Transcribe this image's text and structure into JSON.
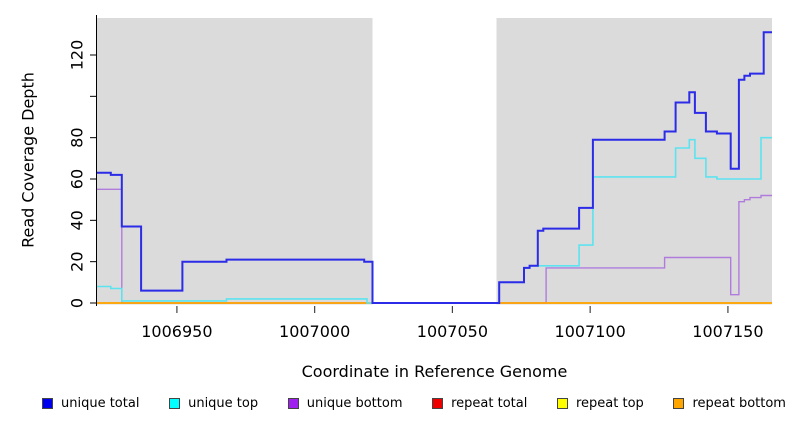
{
  "chart_data": {
    "type": "line",
    "style": "step-after",
    "title": "",
    "xlabel": "Coordinate in Reference Genome",
    "ylabel": "Read Coverage Depth",
    "xlim": [
      1006921,
      1007166
    ],
    "ylim": [
      0,
      138
    ],
    "grid": false,
    "plot_bg_color": "#DBDBDB",
    "axis_color": "#000000",
    "gap_region": {
      "x0": 1007021,
      "x1": 1007066,
      "color": "#FFFFFF"
    },
    "x_ticks": [
      {
        "value": 1006950,
        "label": "1006950"
      },
      {
        "value": 1007000,
        "label": "1007000"
      },
      {
        "value": 1007050,
        "label": "1007050"
      },
      {
        "value": 1007100,
        "label": "1007100"
      },
      {
        "value": 1007150,
        "label": "1007150"
      }
    ],
    "y_ticks": [
      {
        "value": 0,
        "label": "0"
      },
      {
        "value": 20,
        "label": "20"
      },
      {
        "value": 40,
        "label": "40"
      },
      {
        "value": 60,
        "label": "60"
      },
      {
        "value": 80,
        "label": "80"
      },
      {
        "value": 100,
        "label": ""
      },
      {
        "value": 120,
        "label": "120"
      }
    ],
    "series": [
      {
        "id": "repeat-total",
        "label": "repeat total",
        "color": "#E02020",
        "width": 1.2,
        "points": [
          [
            1006921,
            0
          ],
          [
            1007166,
            0
          ]
        ]
      },
      {
        "id": "repeat-top",
        "label": "repeat top",
        "color": "#FFFF00",
        "width": 1.2,
        "points": [
          [
            1006921,
            0
          ],
          [
            1007166,
            0
          ]
        ]
      },
      {
        "id": "unique-bottom",
        "label": "unique bottom",
        "color": "#B07CDC",
        "width": 1.4,
        "points": [
          [
            1006921,
            55
          ],
          [
            1006930,
            0
          ],
          [
            1007084,
            17
          ],
          [
            1007127,
            22
          ],
          [
            1007151,
            4
          ],
          [
            1007154,
            49
          ],
          [
            1007156,
            50
          ],
          [
            1007158,
            51
          ],
          [
            1007162,
            52
          ],
          [
            1007166,
            52
          ]
        ]
      },
      {
        "id": "repeat-bottom",
        "label": "repeat bottom",
        "color": "#FFA500",
        "width": 1.8,
        "points": [
          [
            1006921,
            0
          ],
          [
            1007166,
            0
          ]
        ]
      },
      {
        "id": "unique-top",
        "label": "unique top",
        "color": "#5CE3EF",
        "width": 1.6,
        "points": [
          [
            1006921,
            8
          ],
          [
            1006926,
            7
          ],
          [
            1006930,
            1
          ],
          [
            1006968,
            2
          ],
          [
            1007019,
            0
          ],
          [
            1007067,
            10
          ],
          [
            1007076,
            17
          ],
          [
            1007078,
            18
          ],
          [
            1007096,
            28
          ],
          [
            1007101,
            61
          ],
          [
            1007131,
            75
          ],
          [
            1007136,
            79
          ],
          [
            1007138,
            70
          ],
          [
            1007142,
            61
          ],
          [
            1007146,
            60
          ],
          [
            1007162,
            80
          ],
          [
            1007166,
            80
          ]
        ]
      },
      {
        "id": "unique-total",
        "label": "unique total",
        "color": "#2B2BE8",
        "width": 2,
        "points": [
          [
            1006921,
            63
          ],
          [
            1006926,
            62
          ],
          [
            1006930,
            37
          ],
          [
            1006937,
            6
          ],
          [
            1006952,
            20
          ],
          [
            1006968,
            21
          ],
          [
            1007018,
            20
          ],
          [
            1007021,
            0
          ],
          [
            1007067,
            10
          ],
          [
            1007076,
            17
          ],
          [
            1007078,
            18
          ],
          [
            1007081,
            35
          ],
          [
            1007083,
            36
          ],
          [
            1007096,
            46
          ],
          [
            1007101,
            79
          ],
          [
            1007127,
            83
          ],
          [
            1007131,
            97
          ],
          [
            1007136,
            102
          ],
          [
            1007138,
            92
          ],
          [
            1007142,
            83
          ],
          [
            1007146,
            82
          ],
          [
            1007151,
            65
          ],
          [
            1007154,
            108
          ],
          [
            1007156,
            110
          ],
          [
            1007158,
            111
          ],
          [
            1007163,
            131
          ],
          [
            1007166,
            131
          ]
        ]
      }
    ],
    "legend": [
      {
        "label": "unique total",
        "swatch": "#0000EE"
      },
      {
        "label": "unique top",
        "swatch": "#00FFFF"
      },
      {
        "label": "unique bottom",
        "swatch": "#A020F0"
      },
      {
        "label": "repeat total",
        "swatch": "#EE0000"
      },
      {
        "label": "repeat top",
        "swatch": "#FFFF00"
      },
      {
        "label": "repeat bottom",
        "swatch": "#FFA500"
      }
    ]
  }
}
